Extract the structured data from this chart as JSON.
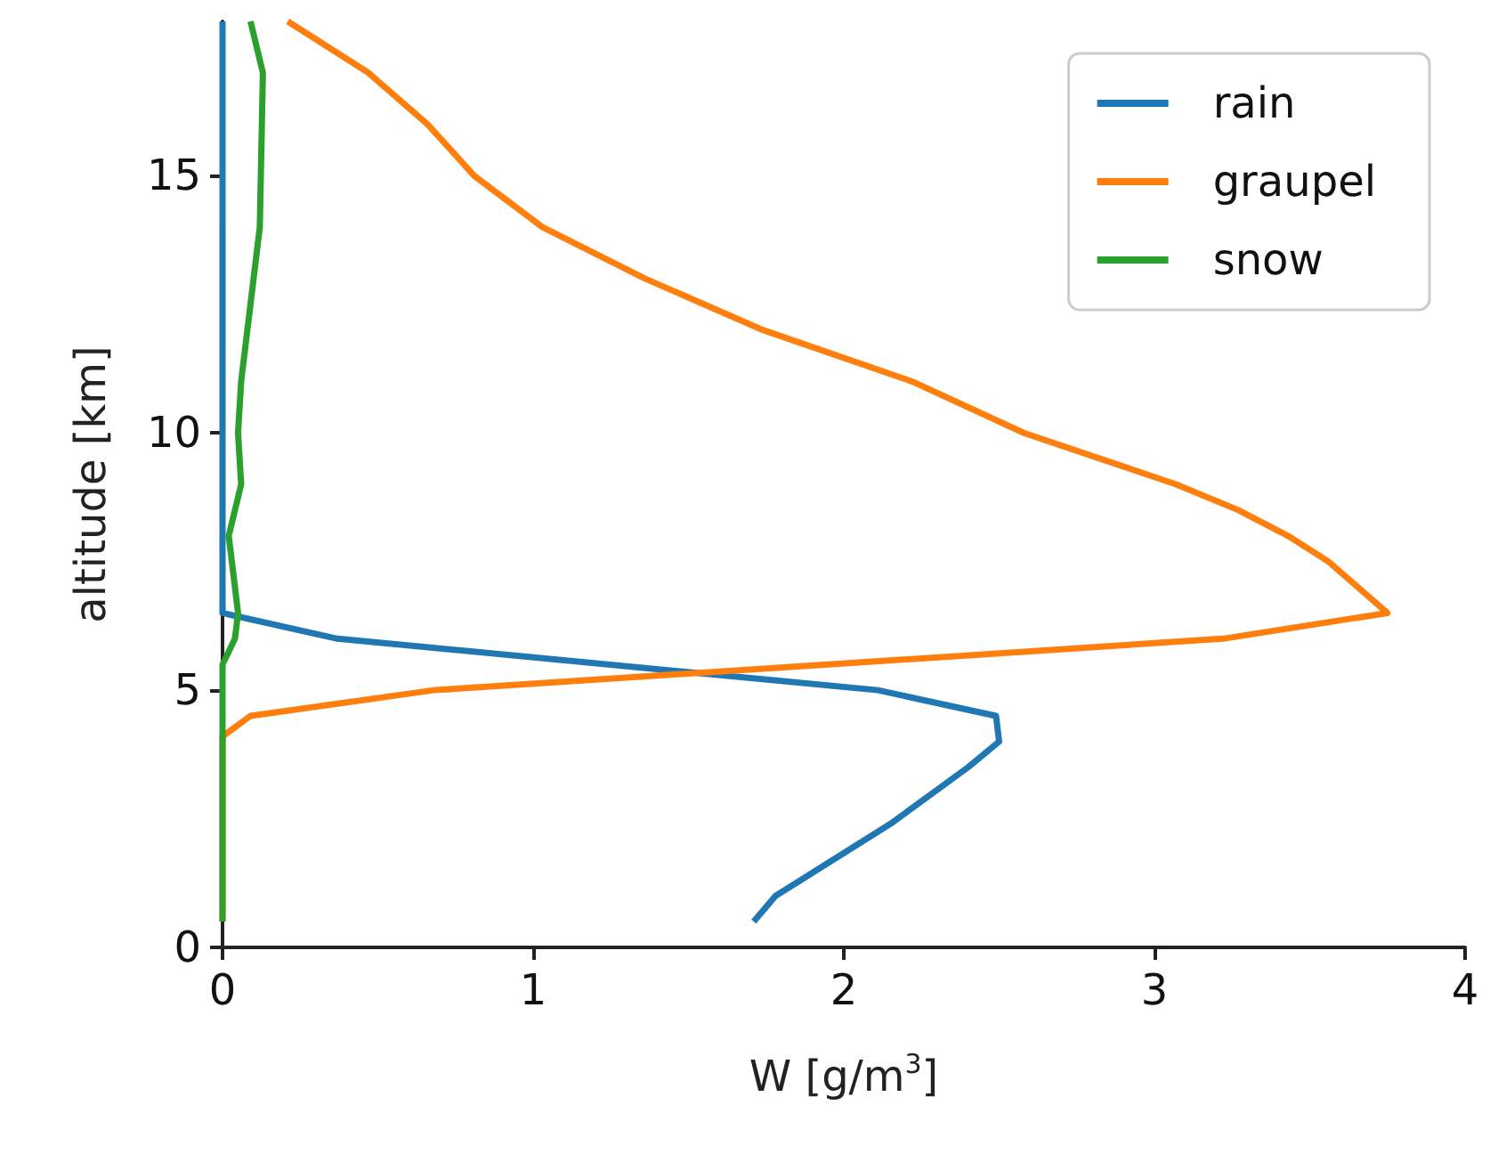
{
  "chart_data": {
    "type": "line",
    "xlabel": "W [g/m$^{3}$]",
    "ylabel": "altitude [km]",
    "xlim": [
      0,
      4
    ],
    "xticks": [
      0,
      1,
      2,
      3,
      4
    ],
    "ylim": [
      0,
      18
    ],
    "yticks": [
      0,
      5,
      10,
      15
    ],
    "grid": false,
    "legend": "top right",
    "marker": "none",
    "line_style": "solid",
    "series": [
      {
        "name": "rain",
        "color": "#1f77b4",
        "x": [
          1.71,
          1.78,
          2.15,
          2.4,
          2.5,
          2.49,
          2.11,
          0.37,
          0,
          0
        ],
        "values": [
          0.5,
          1,
          2.4,
          3.5,
          4,
          4.5,
          5,
          6,
          6.5,
          18
        ]
      },
      {
        "name": "graupel",
        "color": "#ff7f0e",
        "x": [
          0,
          0,
          0.09,
          0.68,
          3.22,
          3.75,
          3.56,
          3.43,
          3.27,
          3.07,
          2.58,
          2.22,
          1.74,
          1.36,
          1.03,
          0.81,
          0.66,
          0.47,
          0.21
        ],
        "values": [
          0.5,
          4.1,
          4.5,
          5,
          6,
          6.5,
          7.5,
          8,
          8.5,
          9,
          10,
          11,
          12,
          13,
          14,
          15,
          16,
          17,
          18
        ]
      },
      {
        "name": "snow",
        "color": "#2ca02c",
        "x": [
          0,
          0,
          0.04,
          0.05,
          0.02,
          0.06,
          0.05,
          0.06,
          0.1,
          0.12,
          0.13,
          0.09
        ],
        "values": [
          0.5,
          5.5,
          6,
          6.5,
          8,
          9,
          10,
          11,
          13,
          14,
          17,
          18
        ]
      }
    ]
  }
}
